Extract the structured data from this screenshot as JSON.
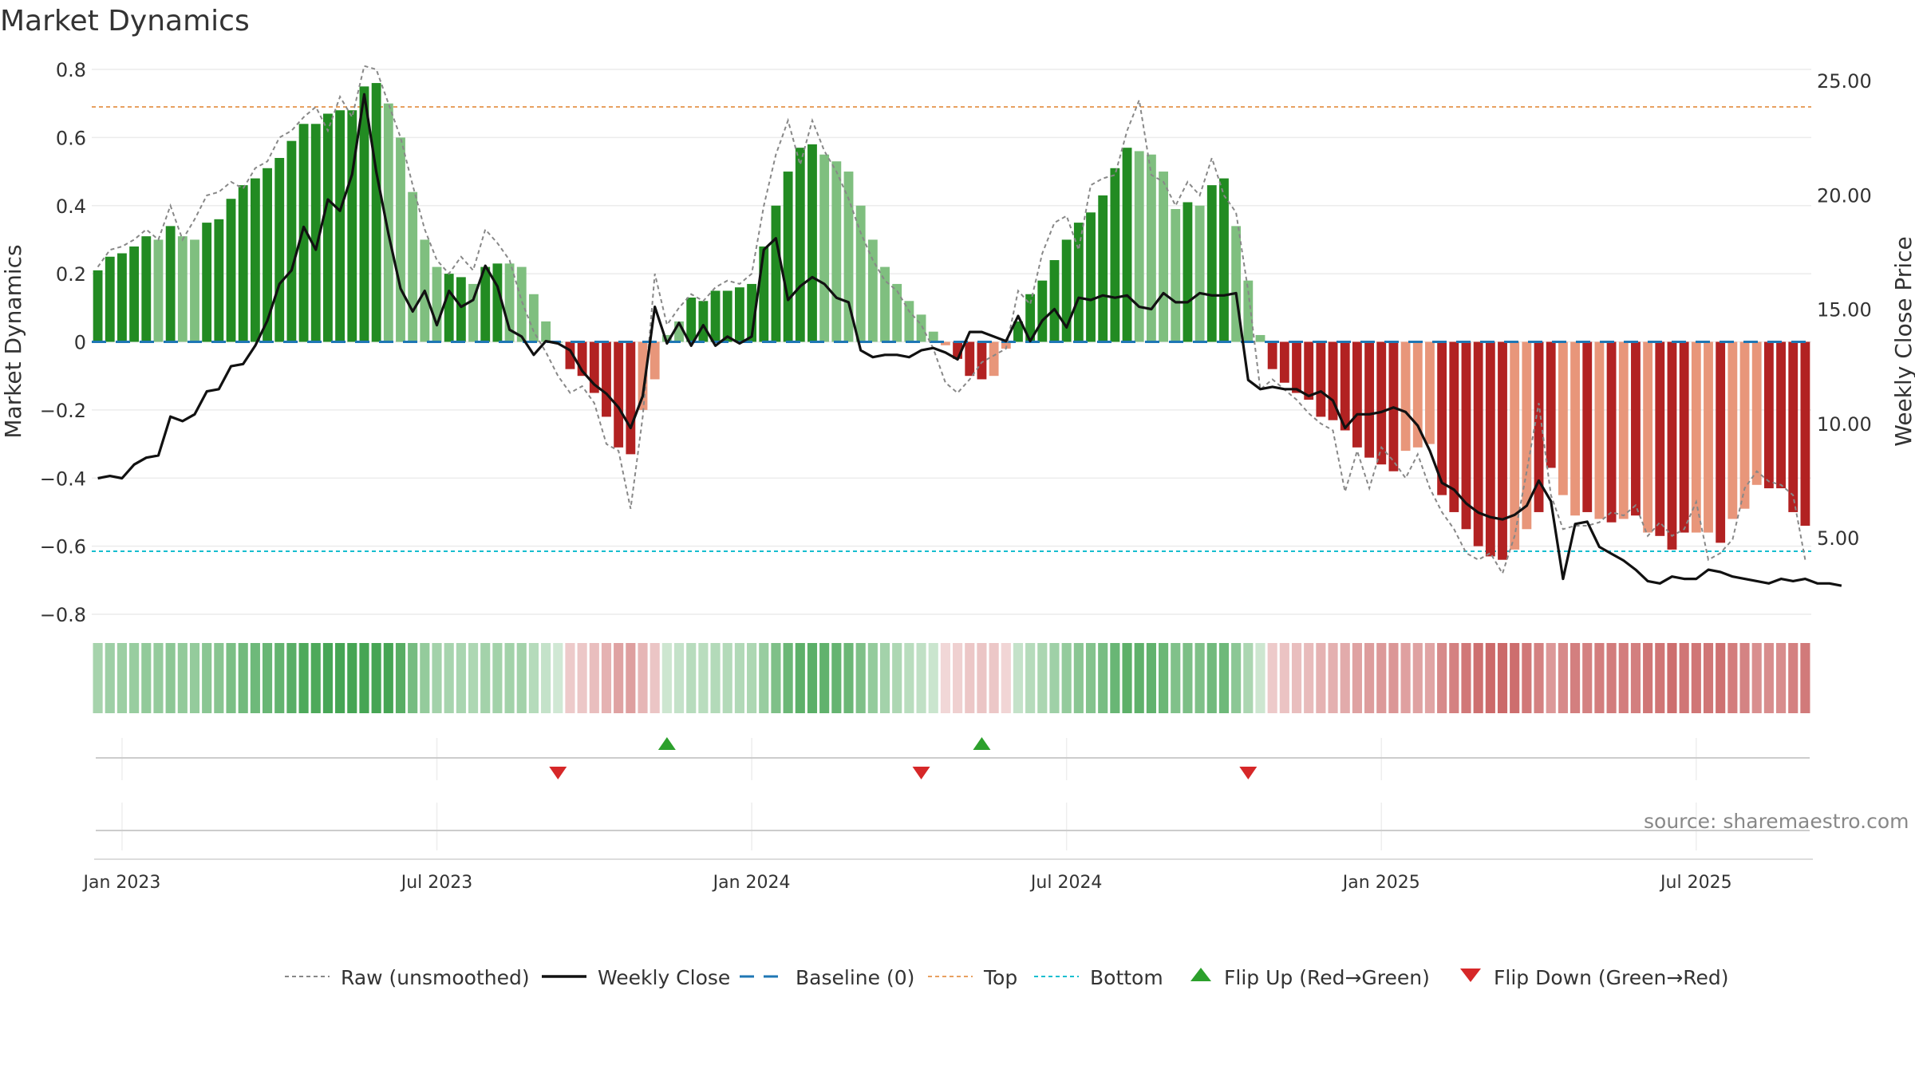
{
  "page": {
    "title": "Market Dynamics",
    "source": "source: sharemaestro.com"
  },
  "colors": {
    "strong_green": "#228B22",
    "light_green": "#7FBF7F",
    "strong_red": "#B22222",
    "light_red": "#E8967A",
    "raw_line": "#888888",
    "close_line": "#111111",
    "baseline": "#1f77b4",
    "top_line": "#E8A060",
    "bottom_line": "#17BECF",
    "flip_up": "#2ca02c",
    "flip_down": "#d62728"
  },
  "legend": [
    {
      "key": "raw",
      "label": "Raw (unsmoothed)"
    },
    {
      "key": "close",
      "label": "Weekly Close"
    },
    {
      "key": "baseline",
      "label": "Baseline (0)"
    },
    {
      "key": "top",
      "label": "Top"
    },
    {
      "key": "bottom",
      "label": "Bottom"
    },
    {
      "key": "flip_up",
      "label": "Flip Up (Red→Green)"
    },
    {
      "key": "flip_down",
      "label": "Flip Down (Green→Red)"
    }
  ],
  "chart_data": {
    "type": "bar",
    "title": "Market Dynamics",
    "ylabel": "Market Dynamics",
    "y2label": "Weekly Close Price",
    "ylim": [
      -0.8,
      0.8
    ],
    "y2lim": [
      0,
      26
    ],
    "yticks": [
      0.8,
      0.6,
      0.4,
      0.2,
      0,
      -0.2,
      -0.4,
      -0.6,
      -0.8
    ],
    "ytick_labels": [
      "0.8",
      "0.6",
      "0.4",
      "0.2",
      "0",
      "−0.2",
      "−0.4",
      "−0.6",
      "−0.8"
    ],
    "y2ticks": [
      25,
      20,
      15,
      10,
      5
    ],
    "y2tick_labels": [
      "25.00",
      "20.00",
      "15.00",
      "10.00",
      "5.00"
    ],
    "xticks": [
      {
        "week": 2,
        "label": "Jan 2023"
      },
      {
        "week": 28,
        "label": "Jul 2023"
      },
      {
        "week": 54,
        "label": "Jan 2024"
      },
      {
        "week": 80,
        "label": "Jul 2024"
      },
      {
        "week": 106,
        "label": "Jan 2025"
      },
      {
        "week": 132,
        "label": "Jul 2025"
      }
    ],
    "top_level": 0.69,
    "bottom_level": -0.615,
    "baseline": 0,
    "grid": true,
    "legend_position": "bottom",
    "series": [
      {
        "name": "Market Dynamics",
        "values": [
          0.21,
          0.25,
          0.26,
          0.28,
          0.31,
          0.3,
          0.34,
          0.31,
          0.3,
          0.35,
          0.36,
          0.42,
          0.46,
          0.48,
          0.51,
          0.54,
          0.59,
          0.64,
          0.64,
          0.67,
          0.68,
          0.68,
          0.75,
          0.76,
          0.7,
          0.6,
          0.44,
          0.3,
          0.22,
          0.2,
          0.19,
          0.17,
          0.22,
          0.23,
          0.23,
          0.22,
          0.14,
          0.06,
          0.0,
          -0.08,
          -0.1,
          -0.15,
          -0.22,
          -0.31,
          -0.33,
          -0.2,
          -0.11,
          0.02,
          0.06,
          0.13,
          0.12,
          0.15,
          0.15,
          0.16,
          0.17,
          0.28,
          0.4,
          0.5,
          0.57,
          0.58,
          0.55,
          0.53,
          0.5,
          0.4,
          0.3,
          0.22,
          0.17,
          0.12,
          0.08,
          0.03,
          -0.01,
          -0.05,
          -0.1,
          -0.11,
          -0.1,
          -0.02,
          0.06,
          0.14,
          0.18,
          0.24,
          0.3,
          0.35,
          0.38,
          0.43,
          0.51,
          0.57,
          0.56,
          0.55,
          0.5,
          0.39,
          0.41,
          0.4,
          0.46,
          0.48,
          0.34,
          0.18,
          0.02,
          -0.08,
          -0.12,
          -0.15,
          -0.17,
          -0.22,
          -0.23,
          -0.26,
          -0.31,
          -0.34,
          -0.36,
          -0.38,
          -0.32,
          -0.31,
          -0.3,
          -0.45,
          -0.5,
          -0.55,
          -0.6,
          -0.63,
          -0.64,
          -0.61,
          -0.55,
          -0.5,
          -0.37,
          -0.45,
          -0.51,
          -0.5,
          -0.52,
          -0.53,
          -0.52,
          -0.51,
          -0.56,
          -0.57,
          -0.61,
          -0.56,
          -0.56,
          -0.56,
          -0.59,
          -0.52,
          -0.49,
          -0.42,
          -0.43,
          -0.43,
          -0.5,
          -0.54
        ]
      },
      {
        "name": "Raw (unsmoothed)",
        "values": [
          0.22,
          0.27,
          0.28,
          0.3,
          0.33,
          0.3,
          0.4,
          0.3,
          0.36,
          0.43,
          0.44,
          0.47,
          0.45,
          0.51,
          0.53,
          0.6,
          0.62,
          0.66,
          0.69,
          0.62,
          0.72,
          0.66,
          0.81,
          0.8,
          0.7,
          0.6,
          0.46,
          0.33,
          0.24,
          0.2,
          0.25,
          0.21,
          0.33,
          0.29,
          0.24,
          0.12,
          0.03,
          -0.03,
          -0.1,
          -0.15,
          -0.13,
          -0.18,
          -0.3,
          -0.32,
          -0.49,
          -0.22,
          0.2,
          0.05,
          0.1,
          0.14,
          0.12,
          0.16,
          0.18,
          0.17,
          0.2,
          0.4,
          0.55,
          0.65,
          0.52,
          0.65,
          0.56,
          0.5,
          0.42,
          0.32,
          0.24,
          0.18,
          0.15,
          0.09,
          0.05,
          -0.02,
          -0.12,
          -0.15,
          -0.11,
          -0.06,
          -0.04,
          -0.02,
          0.15,
          0.11,
          0.26,
          0.35,
          0.37,
          0.27,
          0.46,
          0.48,
          0.49,
          0.62,
          0.71,
          0.49,
          0.47,
          0.4,
          0.47,
          0.43,
          0.54,
          0.43,
          0.38,
          0.15,
          -0.14,
          -0.11,
          -0.14,
          -0.17,
          -0.21,
          -0.24,
          -0.26,
          -0.44,
          -0.32,
          -0.43,
          -0.31,
          -0.35,
          -0.4,
          -0.33,
          -0.43,
          -0.5,
          -0.55,
          -0.62,
          -0.64,
          -0.62,
          -0.68,
          -0.57,
          -0.38,
          -0.18,
          -0.45,
          -0.55,
          -0.54,
          -0.54,
          -0.53,
          -0.5,
          -0.51,
          -0.48,
          -0.57,
          -0.53,
          -0.57,
          -0.55,
          -0.47,
          -0.64,
          -0.62,
          -0.58,
          -0.43,
          -0.38,
          -0.41,
          -0.42,
          -0.45,
          -0.64
        ]
      },
      {
        "name": "Weekly Close",
        "values": [
          7.6,
          7.7,
          7.6,
          8.2,
          8.5,
          8.6,
          10.3,
          10.1,
          10.4,
          11.4,
          11.5,
          12.5,
          12.6,
          13.4,
          14.5,
          16.1,
          16.7,
          18.6,
          17.6,
          19.8,
          19.3,
          20.9,
          24.4,
          21.0,
          18.3,
          15.9,
          14.9,
          15.8,
          14.3,
          15.8,
          15.1,
          15.4,
          16.9,
          16.0,
          14.1,
          13.8,
          13.0,
          13.6,
          13.5,
          13.2,
          12.3,
          11.7,
          11.3,
          10.7,
          9.8,
          11.2,
          15.1,
          13.5,
          14.4,
          13.4,
          14.3,
          13.4,
          13.8,
          13.5,
          13.8,
          17.6,
          18.1,
          15.4,
          16.0,
          16.4,
          16.1,
          15.5,
          15.3,
          13.2,
          12.9,
          13.0,
          13.0,
          12.9,
          13.2,
          13.3,
          13.1,
          12.8,
          14.0,
          14.0,
          13.8,
          13.6,
          14.7,
          13.6,
          14.5,
          15.0,
          14.2,
          15.5,
          15.4,
          15.6,
          15.5,
          15.6,
          15.1,
          15.0,
          15.7,
          15.3,
          15.3,
          15.7,
          15.6,
          15.6,
          15.7,
          11.9,
          11.5,
          11.6,
          11.5,
          11.5,
          11.2,
          11.4,
          11.0,
          9.8,
          10.4,
          10.4,
          10.5,
          10.7,
          10.5,
          9.9,
          8.8,
          7.4,
          7.1,
          6.5,
          6.1,
          5.9,
          5.8,
          6.0,
          6.4,
          7.5,
          6.6,
          3.2,
          5.6,
          5.7,
          4.6,
          4.3,
          4.0,
          3.6,
          3.1,
          3.0,
          3.3,
          3.2,
          3.2,
          3.6,
          3.5,
          3.3,
          3.2,
          3.1,
          3.0,
          3.2,
          3.1,
          3.2,
          3.0,
          3.0,
          2.9
        ]
      }
    ],
    "shades": [
      "strong",
      "strong",
      "strong",
      "strong",
      "strong",
      "light",
      "strong",
      "light",
      "light",
      "strong",
      "strong",
      "strong",
      "strong",
      "strong",
      "strong",
      "strong",
      "strong",
      "strong",
      "strong",
      "strong",
      "strong",
      "strong",
      "strong",
      "strong",
      "light",
      "light",
      "light",
      "light",
      "light",
      "strong",
      "strong",
      "light",
      "strong",
      "strong",
      "light",
      "light",
      "light",
      "light",
      "light",
      "strong",
      "strong",
      "strong",
      "strong",
      "strong",
      "strong",
      "light",
      "light",
      "light",
      "light",
      "strong",
      "strong",
      "strong",
      "strong",
      "strong",
      "strong",
      "strong",
      "strong",
      "strong",
      "strong",
      "strong",
      "light",
      "light",
      "light",
      "light",
      "light",
      "light",
      "light",
      "light",
      "light",
      "light",
      "light",
      "strong",
      "strong",
      "strong",
      "light",
      "light",
      "strong",
      "strong",
      "strong",
      "strong",
      "strong",
      "strong",
      "strong",
      "strong",
      "strong",
      "strong",
      "light",
      "light",
      "light",
      "light",
      "strong",
      "light",
      "strong",
      "strong",
      "light",
      "light",
      "light",
      "strong",
      "strong",
      "strong",
      "strong",
      "strong",
      "strong",
      "strong",
      "strong",
      "strong",
      "strong",
      "strong",
      "light",
      "light",
      "light",
      "strong",
      "strong",
      "strong",
      "strong",
      "strong",
      "strong",
      "light",
      "light",
      "strong",
      "strong",
      "light",
      "light",
      "strong",
      "light",
      "strong",
      "light",
      "strong",
      "light",
      "strong",
      "strong",
      "strong",
      "light",
      "light",
      "strong",
      "light",
      "light",
      "light",
      "strong",
      "strong",
      "strong",
      "strong"
    ],
    "regime_band": [
      {
        "from": 0,
        "to": 38,
        "side": "green"
      },
      {
        "from": 38,
        "to": 47,
        "side": "red"
      },
      {
        "from": 47,
        "to": 68,
        "side": "green"
      },
      {
        "from": 68,
        "to": 73,
        "side": "red"
      },
      {
        "from": 73,
        "to": 95,
        "side": "green"
      },
      {
        "from": 95,
        "to": 144,
        "side": "red"
      }
    ],
    "flips": [
      {
        "week": 38,
        "direction": "down"
      },
      {
        "week": 47,
        "direction": "up"
      },
      {
        "week": 68,
        "direction": "down"
      },
      {
        "week": 73,
        "direction": "up"
      },
      {
        "week": 95,
        "direction": "down"
      }
    ]
  }
}
